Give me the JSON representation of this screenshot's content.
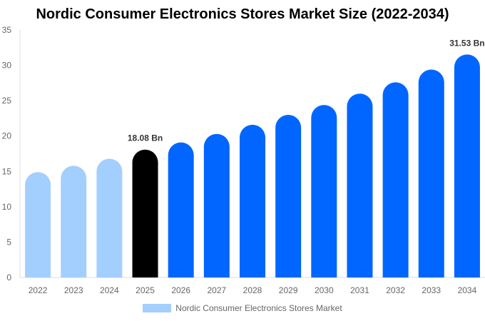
{
  "chart_data": {
    "type": "bar",
    "title": "Nordic Consumer Electronics Stores Market Size (2022-2034)",
    "categories": [
      "2022",
      "2023",
      "2024",
      "2025",
      "2026",
      "2027",
      "2028",
      "2029",
      "2030",
      "2031",
      "2032",
      "2033",
      "2034"
    ],
    "series": [
      {
        "name": "Nordic Consumer Electronics Stores Market",
        "values": [
          14.9,
          15.8,
          16.8,
          18.08,
          19.1,
          20.3,
          21.6,
          23.0,
          24.4,
          26.0,
          27.6,
          29.4,
          31.53
        ]
      }
    ],
    "data_labels": {
      "3": "18.08 Bn",
      "12": "31.53 Bn"
    },
    "ylim": [
      0,
      35
    ],
    "yticks": [
      0,
      5,
      10,
      15,
      20,
      25,
      30,
      35
    ],
    "grid": false,
    "legend": "bottom",
    "colors": {
      "historical": "#a3cfff",
      "current": "#000000",
      "forecast": "#0066ff"
    }
  }
}
